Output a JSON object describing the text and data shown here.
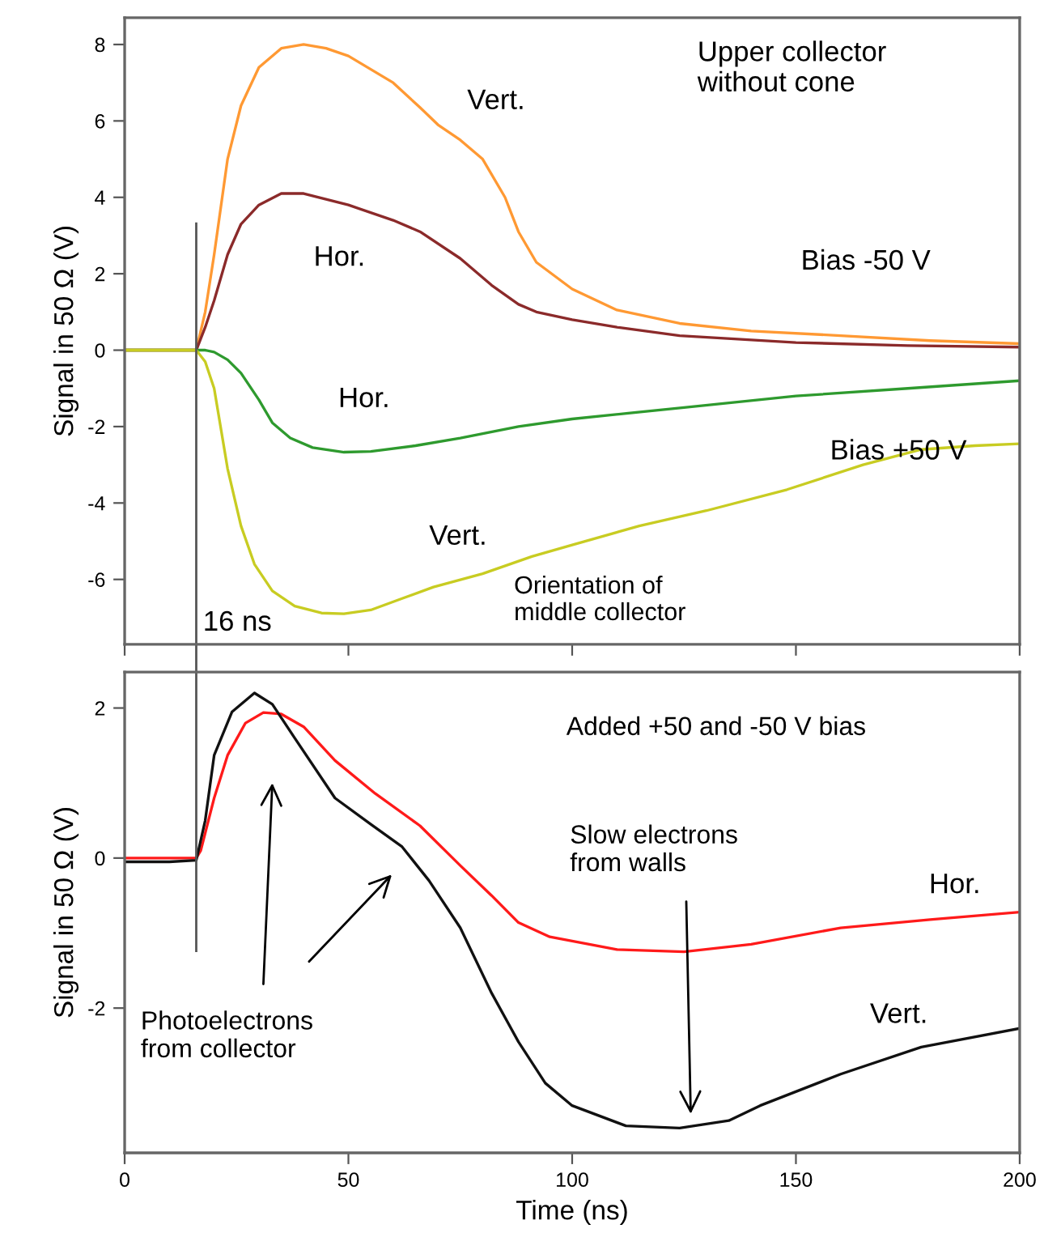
{
  "chart_data": [
    {
      "type": "line",
      "ylabel": "Signal in 50 Ω (V)",
      "xlim": [
        0,
        200
      ],
      "xticks": [
        0,
        50,
        100,
        150,
        200
      ],
      "ylim": [
        -7.7,
        8.7
      ],
      "yticks": [
        -6,
        -4,
        -2,
        0,
        2,
        4,
        6,
        8
      ],
      "tick_labels": "y",
      "grid": false,
      "legend": false,
      "series": [
        {
          "name": "Vert.",
          "color": "#ff9933",
          "x": [
            0,
            16,
            18,
            20,
            23,
            26,
            30,
            35,
            40,
            45,
            50,
            60,
            66,
            70,
            75,
            80,
            85,
            88,
            92,
            100,
            110,
            124,
            140,
            160,
            180,
            200
          ],
          "values": [
            0,
            0,
            1.0,
            2.5,
            5.0,
            6.4,
            7.4,
            7.9,
            8.0,
            7.9,
            7.7,
            7.0,
            6.35,
            5.9,
            5.5,
            5.0,
            4.0,
            3.1,
            2.3,
            1.6,
            1.05,
            0.7,
            0.5,
            0.38,
            0.25,
            0.17
          ]
        },
        {
          "name": "Hor.",
          "color": "#8b2a2a",
          "x": [
            0,
            16,
            18,
            20,
            23,
            26,
            30,
            35,
            40,
            50,
            60,
            66,
            75,
            82,
            88,
            92,
            100,
            110,
            124,
            150,
            175,
            200
          ],
          "values": [
            0,
            0,
            0.6,
            1.3,
            2.5,
            3.3,
            3.8,
            4.1,
            4.1,
            3.8,
            3.4,
            3.1,
            2.4,
            1.7,
            1.2,
            1.0,
            0.8,
            0.6,
            0.38,
            0.2,
            0.12,
            0.08
          ]
        },
        {
          "name": "Hor.",
          "color": "#2e9a2e",
          "x": [
            0,
            18,
            20,
            23,
            26,
            30,
            33,
            37,
            42,
            49,
            55,
            65,
            75,
            88,
            100,
            125,
            150,
            175,
            200
          ],
          "values": [
            0,
            0,
            -0.05,
            -0.25,
            -0.6,
            -1.3,
            -1.9,
            -2.3,
            -2.55,
            -2.67,
            -2.65,
            -2.5,
            -2.3,
            -2.0,
            -1.8,
            -1.5,
            -1.2,
            -1.0,
            -0.8
          ]
        },
        {
          "name": "Vert.",
          "color": "#c8cc22",
          "x": [
            0,
            16,
            18,
            20,
            23,
            26,
            29,
            33,
            38,
            44,
            49,
            55,
            62,
            69,
            80,
            91,
            100,
            115,
            130,
            148,
            165,
            178,
            190,
            200
          ],
          "values": [
            0,
            0,
            -0.3,
            -1.0,
            -3.1,
            -4.6,
            -5.6,
            -6.3,
            -6.7,
            -6.88,
            -6.9,
            -6.8,
            -6.5,
            -6.2,
            -5.85,
            -5.4,
            -5.1,
            -4.6,
            -4.2,
            -3.65,
            -3.0,
            -2.6,
            -2.5,
            -2.45
          ]
        }
      ],
      "ref_lines": [
        {
          "axis": "x",
          "value": 16,
          "label": "16 ns",
          "color": "#555555"
        }
      ],
      "annotations": [
        "Upper collector\nwithout cone",
        "Bias -50 V",
        "Bias +50 V",
        "Orientation of\nmiddle collector"
      ]
    },
    {
      "type": "line",
      "xlabel": "Time (ns)",
      "ylabel": "Signal in 50 Ω (V)",
      "xlim": [
        0,
        200
      ],
      "xticks": [
        0,
        50,
        100,
        150,
        200
      ],
      "ylim": [
        -3.93,
        2.48
      ],
      "yticks": [
        -2,
        0,
        2
      ],
      "grid": false,
      "legend": false,
      "series": [
        {
          "name": "Hor.",
          "color": "#ff1a1a",
          "x": [
            0,
            16,
            17,
            20,
            23,
            27,
            31,
            35,
            40,
            47,
            56,
            66,
            75,
            82,
            88,
            95,
            110,
            125,
            140,
            160,
            180,
            200
          ],
          "values": [
            0,
            0,
            0.1,
            0.8,
            1.37,
            1.8,
            1.94,
            1.92,
            1.75,
            1.3,
            0.86,
            0.43,
            -0.1,
            -0.5,
            -0.86,
            -1.05,
            -1.22,
            -1.25,
            -1.15,
            -0.93,
            -0.82,
            -0.72
          ]
        },
        {
          "name": "Vert.",
          "color": "#111111",
          "x": [
            0,
            10,
            16,
            18,
            20,
            24,
            29,
            33,
            38,
            47,
            55,
            62,
            68,
            75,
            82,
            88,
            94,
            100,
            112,
            124,
            135,
            142,
            160,
            178,
            200
          ],
          "values": [
            -0.05,
            -0.05,
            -0.03,
            0.5,
            1.37,
            1.95,
            2.2,
            2.05,
            1.6,
            0.8,
            0.45,
            0.15,
            -0.3,
            -0.93,
            -1.8,
            -2.45,
            -3.0,
            -3.3,
            -3.57,
            -3.6,
            -3.5,
            -3.3,
            -2.88,
            -2.52,
            -2.27
          ]
        }
      ],
      "ref_lines": [
        {
          "axis": "x",
          "value": 16,
          "color": "#555555"
        }
      ],
      "annotations": [
        "Added +50 and -50 V bias",
        "Photoelectrons\nfrom collector",
        "Slow electrons\nfrom walls"
      ]
    }
  ]
}
